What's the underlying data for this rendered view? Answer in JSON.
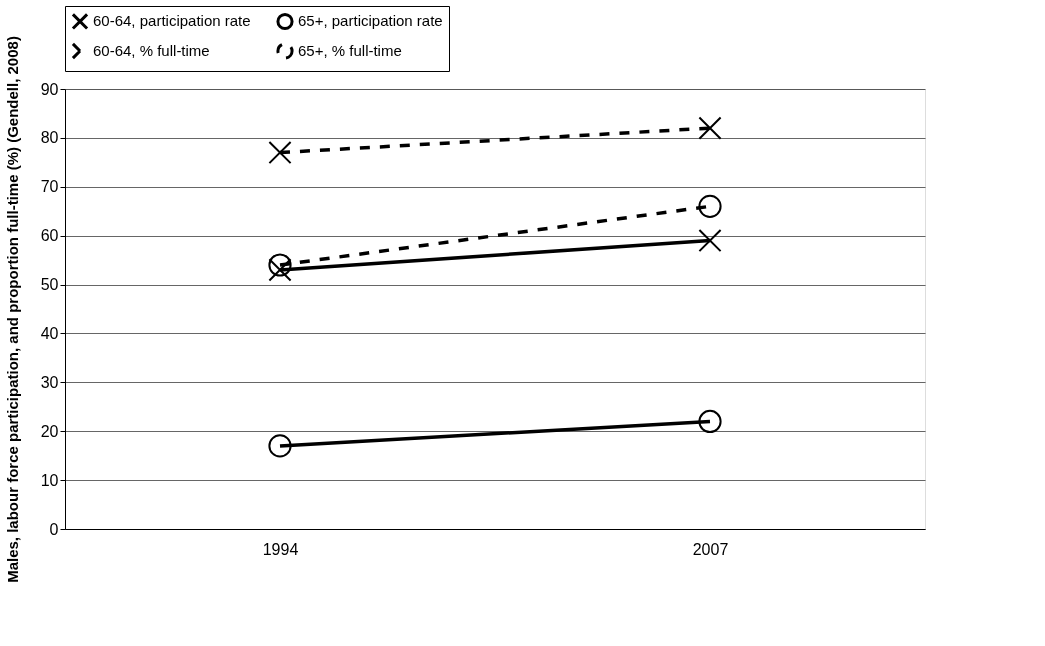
{
  "chart_data": {
    "type": "line",
    "ylabel": "Males, labour force participation, and proportion full-time (%) (Gendell, 2008)",
    "categories": [
      "1994",
      "2007"
    ],
    "series": [
      {
        "name": "60-64, participation rate",
        "color": "#000000",
        "values": [
          53,
          59
        ],
        "marker": "cross",
        "line_style": "solid"
      },
      {
        "name": "65+, participation rate",
        "color": "#000000",
        "values": [
          17,
          22
        ],
        "marker": "circle",
        "line_style": "solid"
      },
      {
        "name": "60-64, % full-time",
        "color": "#000000",
        "values": [
          77,
          82
        ],
        "marker": "cross",
        "line_style": "dashed"
      },
      {
        "name": "65+, % full-time",
        "color": "#000000",
        "values": [
          54,
          66
        ],
        "marker": "circle",
        "line_style": "dashed"
      }
    ],
    "ylim": [
      0,
      90
    ],
    "yticks": [
      0,
      10,
      20,
      30,
      40,
      50,
      60,
      70,
      80,
      90
    ],
    "grid": "y",
    "legend": "top"
  }
}
